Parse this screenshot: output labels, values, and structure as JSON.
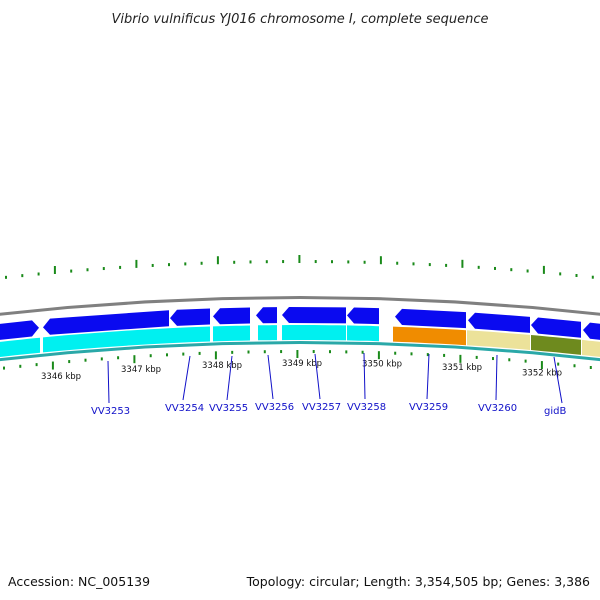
{
  "title": "Vibrio vulnificus YJ016 chromosome I, complete sequence",
  "footer": {
    "accession": "Accession: NC_005139",
    "topology": "Topology: circular; Length: 3,354,505 bp; Genes: 3,386"
  },
  "colors": {
    "backbone": "#808080",
    "cds_forward": "#0a0af0",
    "cds_reverse_track": "#00f0f0",
    "gidB": "#f08c00",
    "gene_tan": "#ece29a",
    "gene_olive": "#6e8a1e",
    "gc_skew": "#1a8a1a",
    "label_line": "#1010c8"
  },
  "scale_labels": [
    "3346 kbp",
    "3347 kbp",
    "3348 kbp",
    "3349 kbp",
    "3350 kbp",
    "3351 kbp",
    "3352 kbp"
  ],
  "gene_labels": [
    "VV3253",
    "VV3254",
    "VV3255",
    "VV3256",
    "VV3257",
    "VV3258",
    "VV3259",
    "VV3260",
    "gidB"
  ]
}
